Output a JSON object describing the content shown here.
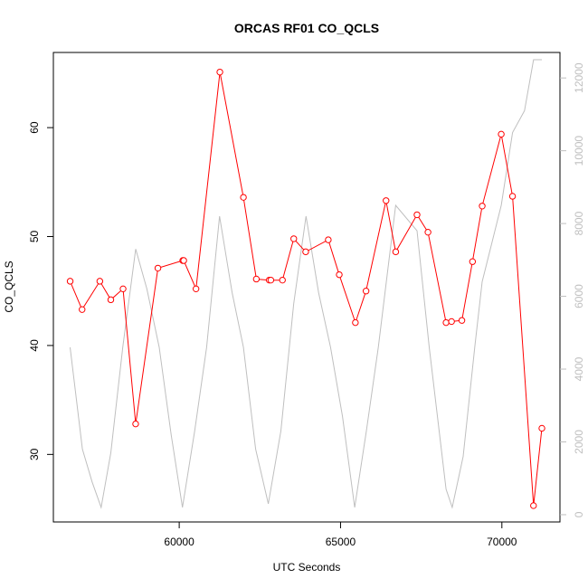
{
  "chart_data": {
    "type": "line",
    "title": "ORCAS RF01 CO_QCLS",
    "xlabel": "UTC Seconds",
    "ylabel": "CO_QCLS",
    "xlim": [
      56100,
      71800
    ],
    "ylim": [
      23.8,
      66.9
    ],
    "y2lim": [
      -200,
      12700
    ],
    "xticks": [
      60000,
      65000,
      70000
    ],
    "xtick_labels": [
      "60000",
      "65000",
      "70000"
    ],
    "yticks": [
      30,
      40,
      50,
      60
    ],
    "ytick_labels": [
      "30",
      "40",
      "50",
      "60"
    ],
    "y2ticks": [
      0,
      2000,
      4000,
      6000,
      8000,
      10000,
      12000
    ],
    "y2tick_labels": [
      "0",
      "2000",
      "4000",
      "6000",
      "8000",
      "10000",
      "12000"
    ],
    "grid": false,
    "legend": "none",
    "series": [
      {
        "axis": "left",
        "color": "#ff0000",
        "marker": "open-circle",
        "x": [
          56620,
          56990,
          57540,
          57880,
          58260,
          58650,
          59340,
          60110,
          60140,
          60520,
          61260,
          61990,
          62390,
          62790,
          62840,
          63200,
          63550,
          63920,
          64620,
          64960,
          65460,
          65790,
          66410,
          66710,
          67370,
          67710,
          68270,
          68440,
          68760,
          69090,
          69390,
          69980,
          70330,
          70980,
          71240
        ],
        "y": [
          45.9,
          43.3,
          45.9,
          44.2,
          45.2,
          32.8,
          47.1,
          47.8,
          47.8,
          45.2,
          65.1,
          53.6,
          46.1,
          46.0,
          46.0,
          46.0,
          49.8,
          48.6,
          49.7,
          46.5,
          42.1,
          45.0,
          53.3,
          48.6,
          52.0,
          50.4,
          42.1,
          42.2,
          42.3,
          47.7,
          52.8,
          59.4,
          53.7,
          25.3,
          32.4
        ]
      },
      {
        "axis": "right",
        "color": "#bfbfbf",
        "marker": "none",
        "x": [
          56620,
          57000,
          57300,
          57580,
          57880,
          58250,
          58650,
          59000,
          59380,
          59750,
          60100,
          60480,
          60850,
          61250,
          61640,
          61990,
          62370,
          62760,
          63150,
          63550,
          63930,
          64320,
          64690,
          65060,
          65440,
          65800,
          66170,
          66710,
          67370,
          67750,
          68270,
          68460,
          68800,
          69160,
          69390,
          69980,
          70330,
          70700,
          70980,
          71240
        ],
        "y": [
          4600,
          1800,
          900,
          200,
          1700,
          4600,
          7300,
          6200,
          4600,
          2200,
          200,
          2300,
          4600,
          8200,
          6100,
          4600,
          1800,
          300,
          2300,
          5800,
          8200,
          6100,
          4600,
          2700,
          200,
          2300,
          4600,
          8500,
          7800,
          4600,
          700,
          200,
          1600,
          4600,
          6400,
          8500,
          10500,
          11100,
          12500,
          12500
        ]
      }
    ]
  }
}
